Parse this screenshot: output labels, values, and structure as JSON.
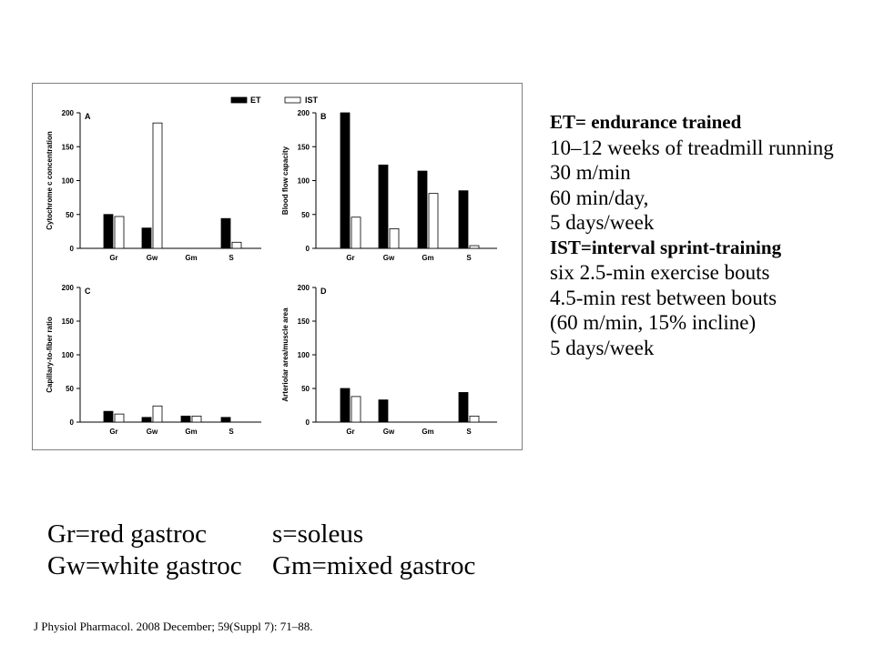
{
  "legend": {
    "et": "ET",
    "ist": "IST"
  },
  "chart_data": [
    {
      "type": "bar",
      "panel": "A",
      "ylabel": "Cytochrome c concentration",
      "ylim": [
        0,
        200
      ],
      "yticks": [
        "0",
        "50",
        "100",
        "150",
        "200"
      ],
      "categories": [
        "Gr",
        "Gw",
        "Gm",
        "S"
      ],
      "series": [
        {
          "name": "ET",
          "values": [
            50,
            30,
            0,
            44
          ]
        },
        {
          "name": "IST",
          "values": [
            47,
            185,
            0,
            9
          ]
        }
      ]
    },
    {
      "type": "bar",
      "panel": "B",
      "ylabel": "Blood flow capacity",
      "ylim": [
        0,
        200
      ],
      "yticks": [
        "0",
        "50",
        "100",
        "150",
        "200"
      ],
      "categories": [
        "Gr",
        "Gw",
        "Gm",
        "S"
      ],
      "series": [
        {
          "name": "ET",
          "values": [
            200,
            123,
            114,
            85
          ]
        },
        {
          "name": "IST",
          "values": [
            46,
            29,
            81,
            4
          ]
        }
      ]
    },
    {
      "type": "bar",
      "panel": "C",
      "ylabel": "Capillary-to-fiber ratio",
      "ylim": [
        0,
        200
      ],
      "yticks": [
        "0",
        "50",
        "100",
        "150",
        "200"
      ],
      "categories": [
        "Gr",
        "Gw",
        "Gm",
        "S"
      ],
      "series": [
        {
          "name": "ET",
          "values": [
            16,
            7,
            9,
            7
          ]
        },
        {
          "name": "IST",
          "values": [
            12,
            24,
            9,
            0
          ]
        }
      ]
    },
    {
      "type": "bar",
      "panel": "D",
      "ylabel": "Arteriolar area/muscle area",
      "ylim": [
        0,
        200
      ],
      "yticks": [
        "0",
        "50",
        "100",
        "150",
        "200"
      ],
      "categories": [
        "Gr",
        "Gw",
        "Gm",
        "S"
      ],
      "series": [
        {
          "name": "ET",
          "values": [
            50,
            33,
            0,
            44
          ]
        },
        {
          "name": "IST",
          "values": [
            38,
            0,
            0,
            9
          ]
        }
      ]
    }
  ],
  "notes": [
    {
      "text": "ET= endurance trained",
      "bold": true
    },
    {
      "text": "10–12 weeks of treadmill running",
      "bold": false
    },
    {
      "text": "30 m/min",
      "bold": false
    },
    {
      "text": "60 min/day,",
      "bold": false
    },
    {
      "text": "5 days/week",
      "bold": false
    },
    {
      "text": "IST=interval sprint-training",
      "bold": true
    },
    {
      "text": "six 2.5-min exercise bouts",
      "bold": false
    },
    {
      "text": "4.5-min rest between bouts",
      "bold": false
    },
    {
      "text": "(60 m/min, 15% incline)",
      "bold": false
    },
    {
      "text": "5 days/week",
      "bold": false
    }
  ],
  "abbreviations": {
    "gr": "Gr=red gastroc",
    "s": "s=soleus",
    "gw": "Gw=white gastroc",
    "gm": "Gm=mixed gastroc"
  },
  "citation": "J Physiol Pharmacol. 2008 December; 59(Suppl 7): 71–88.",
  "colors": {
    "et_fill": "#000000",
    "ist_fill": "#ffffff",
    "bar_stroke": "#000000",
    "frame": "#808080"
  }
}
